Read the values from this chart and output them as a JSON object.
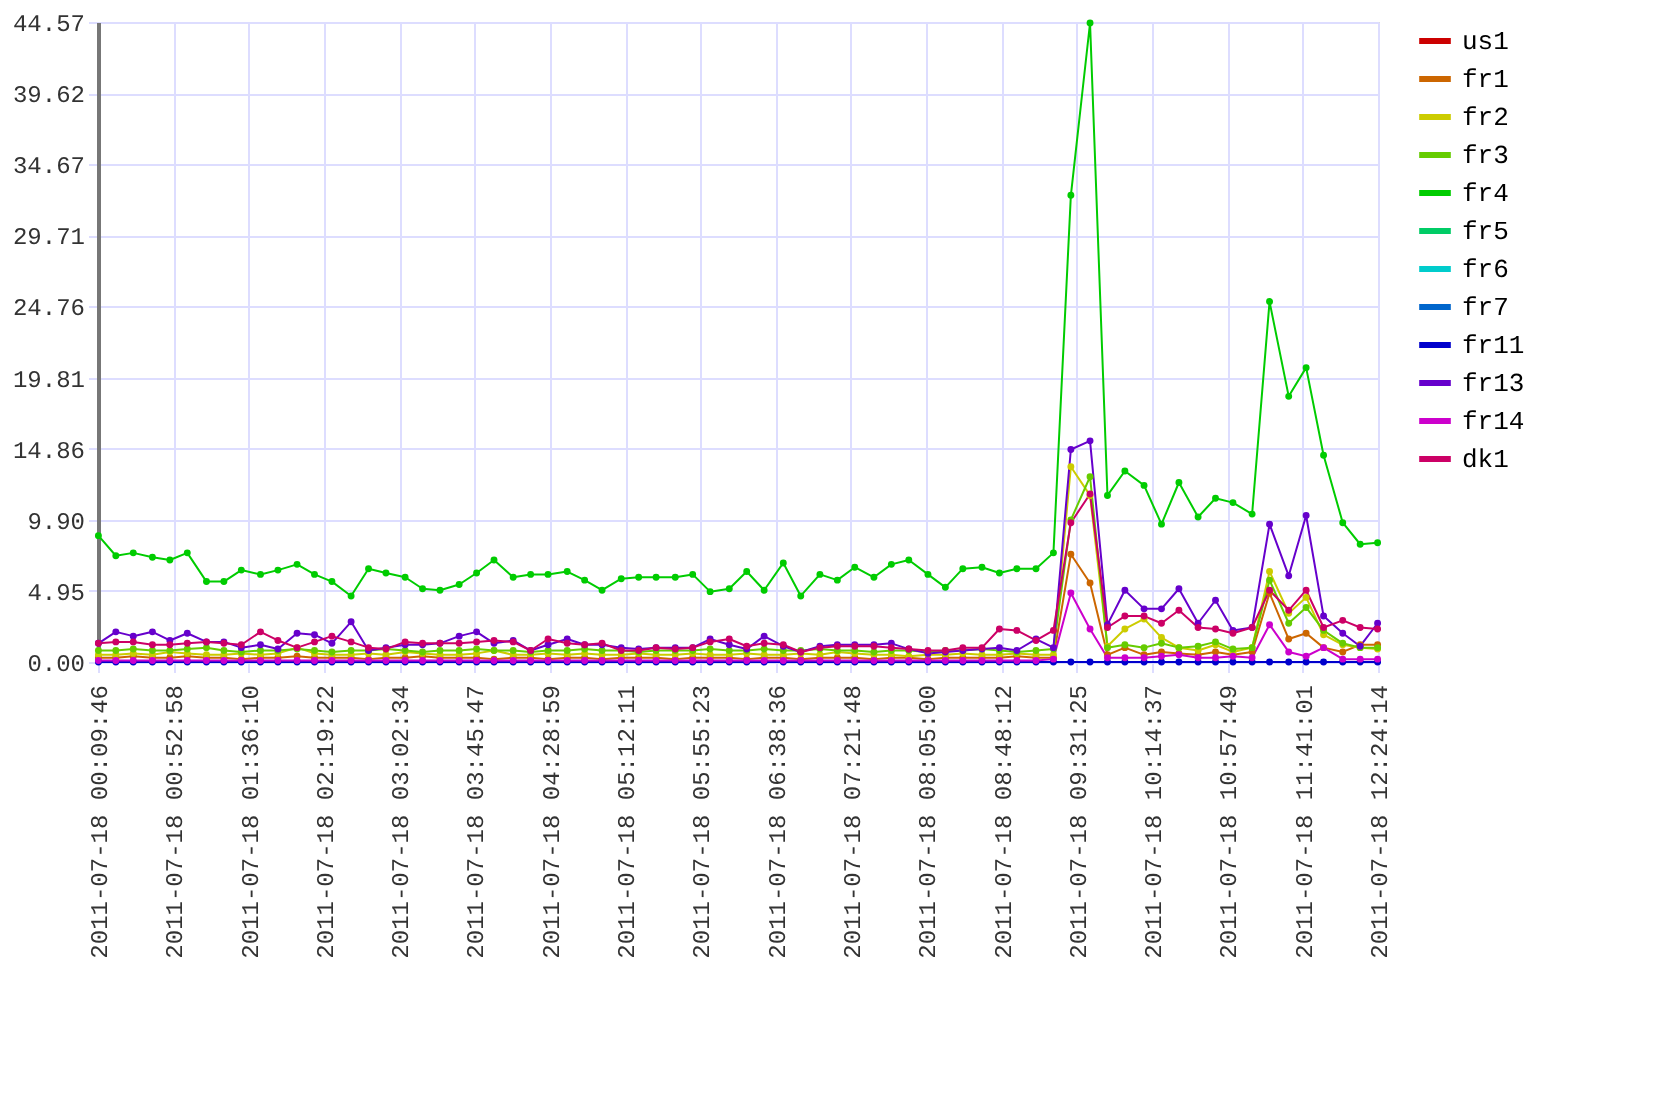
{
  "chart_data": {
    "type": "line",
    "x": [
      "2011-07-18T00:10",
      "2011-07-18T00:20",
      "2011-07-18T00:30",
      "2011-07-18T00:41",
      "2011-07-18T00:51",
      "2011-07-18T01:01",
      "2011-07-18T01:12",
      "2011-07-18T01:22",
      "2011-07-18T01:32",
      "2011-07-18T01:43",
      "2011-07-18T01:53",
      "2011-07-18T02:04",
      "2011-07-18T02:14",
      "2011-07-18T02:24",
      "2011-07-18T02:35",
      "2011-07-18T02:45",
      "2011-07-18T02:55",
      "2011-07-18T03:06",
      "2011-07-18T03:16",
      "2011-07-18T03:26",
      "2011-07-18T03:37",
      "2011-07-18T03:47",
      "2011-07-18T03:57",
      "2011-07-18T04:08",
      "2011-07-18T04:18",
      "2011-07-18T04:28",
      "2011-07-18T04:39",
      "2011-07-18T04:49",
      "2011-07-18T04:59",
      "2011-07-18T05:10",
      "2011-07-18T05:20",
      "2011-07-18T05:30",
      "2011-07-18T05:41",
      "2011-07-18T05:51",
      "2011-07-18T06:01",
      "2011-07-18T06:12",
      "2011-07-18T06:22",
      "2011-07-18T06:32",
      "2011-07-18T06:43",
      "2011-07-18T06:53",
      "2011-07-18T07:04",
      "2011-07-18T07:14",
      "2011-07-18T07:24",
      "2011-07-18T07:35",
      "2011-07-18T07:45",
      "2011-07-18T07:55",
      "2011-07-18T08:06",
      "2011-07-18T08:16",
      "2011-07-18T08:26",
      "2011-07-18T08:37",
      "2011-07-18T08:47",
      "2011-07-18T08:57",
      "2011-07-18T09:08",
      "2011-07-18T09:18",
      "2011-07-18T09:28",
      "2011-07-18T09:39",
      "2011-07-18T09:49",
      "2011-07-18T09:59",
      "2011-07-18T10:10",
      "2011-07-18T10:20",
      "2011-07-18T10:30",
      "2011-07-18T10:41",
      "2011-07-18T10:51",
      "2011-07-18T11:01",
      "2011-07-18T11:12",
      "2011-07-18T11:22",
      "2011-07-18T11:33",
      "2011-07-18T11:43",
      "2011-07-18T11:53",
      "2011-07-18T12:04",
      "2011-07-18T12:14",
      "2011-07-18T12:24"
    ],
    "series": [
      {
        "name": "us1",
        "color": "#cc0000",
        "values": [
          null,
          null,
          null,
          null,
          null,
          null,
          null,
          null,
          null,
          null,
          null,
          null,
          null,
          null,
          null,
          null,
          null,
          null,
          null,
          null,
          null,
          null,
          null,
          null,
          null,
          null,
          null,
          null,
          null,
          null,
          null,
          null,
          null,
          null,
          null,
          null,
          null,
          null,
          null,
          null,
          null,
          null,
          null,
          null,
          null,
          null,
          null,
          null,
          null,
          null,
          null,
          null,
          null,
          null,
          null,
          null,
          null,
          null,
          null,
          null,
          null,
          null,
          null,
          null,
          null,
          null,
          null,
          null,
          null,
          null,
          null,
          null
        ]
      },
      {
        "name": "fr1",
        "color": "#cc6600",
        "values": [
          0.3,
          0.3,
          0.4,
          0.3,
          0.3,
          0.4,
          0.3,
          0.3,
          0.2,
          0.3,
          0.3,
          0.4,
          0.3,
          0.3,
          0.3,
          0.2,
          0.3,
          0.3,
          0.4,
          0.3,
          0.3,
          0.3,
          0.2,
          0.3,
          0.3,
          0.2,
          0.3,
          0.3,
          0.2,
          0.3,
          0.3,
          0.3,
          0.2,
          0.3,
          0.3,
          0.3,
          0.2,
          0.3,
          0.3,
          0.2,
          0.3,
          0.3,
          0.3,
          0.2,
          0.3,
          0.3,
          0.2,
          0.3,
          0.3,
          0.3,
          0.3,
          0.4,
          0.3,
          0.3,
          7.5,
          5.5,
          0.5,
          1.0,
          0.5,
          0.7,
          0.6,
          0.5,
          0.7,
          0.5,
          0.7,
          4.8,
          1.6,
          2.0,
          1.0,
          0.7,
          1.2,
          1.2
        ]
      },
      {
        "name": "fr2",
        "color": "#cccc00",
        "values": [
          0.5,
          0.5,
          0.6,
          0.5,
          0.7,
          0.6,
          0.5,
          0.5,
          0.6,
          0.5,
          0.6,
          1.0,
          0.6,
          0.5,
          0.5,
          0.6,
          0.5,
          0.7,
          0.6,
          0.5,
          0.5,
          0.6,
          0.8,
          0.5,
          0.5,
          0.6,
          0.5,
          0.6,
          0.5,
          0.5,
          0.6,
          0.5,
          0.5,
          0.6,
          0.5,
          0.5,
          0.6,
          0.5,
          0.5,
          0.6,
          0.5,
          0.7,
          0.6,
          0.5,
          0.5,
          0.4,
          0.5,
          0.5,
          0.6,
          0.5,
          0.5,
          0.6,
          0.5,
          0.5,
          13.6,
          11.6,
          1.1,
          2.3,
          3.0,
          1.7,
          1.0,
          0.8,
          1.2,
          0.7,
          1.0,
          6.3,
          3.4,
          4.5,
          1.9,
          1.2,
          1.0,
          0.9
        ]
      },
      {
        "name": "fr3",
        "color": "#66cc00",
        "values": [
          0.8,
          0.8,
          0.9,
          0.8,
          0.8,
          0.9,
          1.0,
          0.8,
          0.7,
          0.8,
          0.8,
          0.9,
          0.8,
          0.7,
          0.8,
          0.8,
          0.9,
          0.8,
          0.7,
          0.8,
          0.8,
          0.9,
          0.8,
          0.8,
          0.7,
          0.8,
          0.8,
          0.9,
          0.8,
          0.8,
          0.7,
          0.8,
          0.8,
          0.8,
          0.9,
          0.8,
          0.8,
          0.9,
          0.8,
          0.8,
          0.9,
          0.8,
          0.8,
          0.7,
          0.8,
          0.8,
          0.7,
          0.8,
          0.8,
          0.9,
          0.8,
          0.7,
          0.8,
          0.9,
          9.9,
          12.9,
          1.0,
          1.2,
          1.0,
          1.3,
          1.0,
          1.1,
          1.4,
          0.9,
          1.0,
          5.7,
          2.7,
          3.8,
          2.2,
          1.3,
          1.0,
          1.0
        ]
      },
      {
        "name": "fr4",
        "color": "#00cc00",
        "values": [
          8.8,
          7.4,
          7.6,
          7.3,
          7.1,
          7.6,
          5.6,
          5.6,
          6.4,
          6.1,
          6.4,
          6.8,
          6.1,
          5.6,
          4.6,
          6.5,
          6.2,
          5.9,
          5.1,
          5.0,
          5.4,
          6.2,
          7.1,
          5.9,
          6.1,
          6.1,
          6.3,
          5.7,
          5.0,
          5.8,
          5.9,
          5.9,
          5.9,
          6.1,
          4.9,
          5.1,
          6.3,
          5.0,
          6.9,
          4.6,
          6.1,
          5.7,
          6.6,
          5.9,
          6.8,
          7.1,
          6.1,
          5.2,
          6.5,
          6.6,
          6.2,
          6.5,
          6.5,
          7.6,
          32.5,
          44.5,
          11.6,
          13.3,
          12.3,
          9.6,
          12.5,
          10.1,
          11.4,
          11.1,
          10.3,
          25.1,
          18.5,
          20.5,
          14.4,
          9.7,
          8.2,
          8.3
        ]
      },
      {
        "name": "fr5",
        "color": "#00cc66",
        "values": [
          null,
          null,
          null,
          null,
          null,
          null,
          null,
          null,
          null,
          null,
          null,
          null,
          null,
          null,
          null,
          null,
          null,
          null,
          null,
          null,
          null,
          null,
          null,
          null,
          null,
          null,
          null,
          null,
          null,
          null,
          null,
          null,
          null,
          null,
          null,
          null,
          null,
          null,
          null,
          null,
          null,
          null,
          null,
          null,
          null,
          null,
          null,
          null,
          null,
          null,
          null,
          null,
          null,
          null,
          null,
          null,
          null,
          null,
          null,
          null,
          null,
          null,
          null,
          null,
          null,
          null,
          null,
          null,
          null,
          null,
          null,
          null
        ]
      },
      {
        "name": "fr6",
        "color": "#00cccc",
        "values": [
          null,
          null,
          null,
          null,
          null,
          null,
          null,
          null,
          null,
          null,
          null,
          null,
          null,
          null,
          null,
          null,
          null,
          null,
          null,
          null,
          null,
          null,
          null,
          null,
          null,
          null,
          null,
          null,
          null,
          null,
          null,
          null,
          null,
          null,
          null,
          null,
          null,
          null,
          null,
          null,
          null,
          null,
          null,
          null,
          null,
          null,
          null,
          null,
          null,
          null,
          null,
          null,
          null,
          null,
          null,
          null,
          null,
          null,
          null,
          null,
          null,
          null,
          null,
          null,
          null,
          null,
          null,
          null,
          null,
          null,
          null,
          null
        ]
      },
      {
        "name": "fr7",
        "color": "#0066cc",
        "values": [
          null,
          null,
          null,
          null,
          null,
          null,
          null,
          null,
          null,
          null,
          null,
          null,
          null,
          null,
          null,
          null,
          null,
          null,
          null,
          null,
          null,
          null,
          null,
          null,
          null,
          null,
          null,
          null,
          null,
          null,
          null,
          null,
          null,
          null,
          null,
          null,
          null,
          null,
          null,
          null,
          null,
          null,
          null,
          null,
          null,
          null,
          null,
          null,
          null,
          null,
          null,
          null,
          null,
          null,
          null,
          null,
          null,
          null,
          null,
          null,
          null,
          null,
          null,
          null,
          null,
          null,
          null,
          null,
          null,
          null,
          null,
          null
        ]
      },
      {
        "name": "fr11",
        "color": "#0000cc",
        "values": [
          0,
          0,
          0,
          0,
          0,
          0,
          0,
          0,
          0,
          0,
          0,
          0,
          0,
          0,
          0,
          0,
          0,
          0,
          0,
          0,
          0,
          0,
          0,
          0,
          0,
          0,
          0,
          0,
          0,
          0,
          0,
          0,
          0,
          0,
          0,
          0,
          0,
          0,
          0,
          0,
          0,
          0,
          0,
          0,
          0,
          0,
          0,
          0,
          0,
          0,
          0,
          0,
          0,
          0,
          0,
          0,
          0,
          0,
          0,
          0,
          0,
          0,
          0,
          0,
          0,
          0,
          0,
          0,
          0,
          0,
          0,
          0
        ]
      },
      {
        "name": "fr13",
        "color": "#6600cc",
        "values": [
          1.3,
          2.1,
          1.8,
          2.1,
          1.5,
          2.0,
          1.4,
          1.4,
          1.0,
          1.2,
          0.9,
          2.0,
          1.9,
          1.3,
          2.8,
          0.8,
          1.0,
          1.2,
          1.2,
          1.3,
          1.8,
          2.1,
          1.3,
          1.5,
          0.8,
          1.2,
          1.6,
          1.2,
          1.2,
          1.0,
          0.9,
          1.0,
          1.0,
          1.0,
          1.6,
          1.2,
          0.9,
          1.8,
          1.1,
          0.7,
          1.1,
          1.2,
          1.2,
          1.2,
          1.3,
          0.9,
          0.6,
          0.7,
          0.8,
          0.9,
          1.0,
          0.8,
          1.6,
          1.0,
          14.8,
          15.4,
          2.6,
          5.0,
          3.7,
          3.7,
          5.1,
          2.7,
          4.3,
          2.2,
          2.4,
          9.6,
          6.0,
          10.2,
          3.2,
          2.0,
          1.1,
          2.7
        ]
      },
      {
        "name": "fr14",
        "color": "#cc00cc",
        "values": [
          0.1,
          0.1,
          0.1,
          0.1,
          0.1,
          0.1,
          0.1,
          0.1,
          0.1,
          0.1,
          0.1,
          0.1,
          0.1,
          0.1,
          0.1,
          0.1,
          0.1,
          0.1,
          0.1,
          0.1,
          0.1,
          0.1,
          0.1,
          0.1,
          0.1,
          0.1,
          0.1,
          0.1,
          0.1,
          0.1,
          0.1,
          0.1,
          0.1,
          0.1,
          0.1,
          0.1,
          0.1,
          0.1,
          0.1,
          0.1,
          0.1,
          0.1,
          0.1,
          0.1,
          0.1,
          0.1,
          0.1,
          0.1,
          0.1,
          0.1,
          0.1,
          0.1,
          0.1,
          0.2,
          4.8,
          2.3,
          0.3,
          0.3,
          0.3,
          0.4,
          0.5,
          0.3,
          0.3,
          0.4,
          0.3,
          2.6,
          0.7,
          0.4,
          1.0,
          0.2,
          0.2,
          0.2
        ]
      },
      {
        "name": "dk1",
        "color": "#cc0066",
        "values": [
          1.3,
          1.4,
          1.4,
          1.2,
          1.2,
          1.3,
          1.4,
          1.3,
          1.2,
          2.1,
          1.5,
          1.0,
          1.4,
          1.8,
          1.4,
          1.0,
          0.9,
          1.4,
          1.3,
          1.3,
          1.3,
          1.4,
          1.5,
          1.4,
          0.8,
          1.6,
          1.3,
          1.2,
          1.3,
          0.8,
          0.8,
          1.0,
          0.9,
          1.0,
          1.4,
          1.6,
          1.1,
          1.3,
          1.2,
          0.7,
          1.0,
          1.1,
          1.1,
          1.1,
          1.0,
          0.9,
          0.8,
          0.8,
          1.0,
          1.0,
          2.3,
          2.2,
          1.5,
          2.2,
          9.7,
          11.7,
          2.4,
          3.2,
          3.2,
          2.7,
          3.6,
          2.4,
          2.3,
          2.0,
          2.4,
          5.0,
          3.6,
          5.0,
          2.4,
          2.9,
          2.4,
          2.3
        ]
      }
    ],
    "xlim": [
      "2011-07-18T00:09:46",
      "2011-07-18T12:24:14"
    ],
    "xticks": [
      {
        "value": "2011-07-18T00:09:46",
        "label": "2011-07-18 00:09:46"
      },
      {
        "value": "2011-07-18T00:52:58",
        "label": "2011-07-18 00:52:58"
      },
      {
        "value": "2011-07-18T01:36:10",
        "label": "2011-07-18 01:36:10"
      },
      {
        "value": "2011-07-18T02:19:22",
        "label": "2011-07-18 02:19:22"
      },
      {
        "value": "2011-07-18T03:02:34",
        "label": "2011-07-18 03:02:34"
      },
      {
        "value": "2011-07-18T03:45:47",
        "label": "2011-07-18 03:45:47"
      },
      {
        "value": "2011-07-18T04:28:59",
        "label": "2011-07-18 04:28:59"
      },
      {
        "value": "2011-07-18T05:12:11",
        "label": "2011-07-18 05:12:11"
      },
      {
        "value": "2011-07-18T05:55:23",
        "label": "2011-07-18 05:55:23"
      },
      {
        "value": "2011-07-18T06:38:36",
        "label": "2011-07-18 06:38:36"
      },
      {
        "value": "2011-07-18T07:21:48",
        "label": "2011-07-18 07:21:48"
      },
      {
        "value": "2011-07-18T08:05:00",
        "label": "2011-07-18 08:05:00"
      },
      {
        "value": "2011-07-18T08:48:12",
        "label": "2011-07-18 08:48:12"
      },
      {
        "value": "2011-07-18T09:31:25",
        "label": "2011-07-18 09:31:25"
      },
      {
        "value": "2011-07-18T10:14:37",
        "label": "2011-07-18 10:14:37"
      },
      {
        "value": "2011-07-18T10:57:49",
        "label": "2011-07-18 10:57:49"
      },
      {
        "value": "2011-07-18T11:41:01",
        "label": "2011-07-18 11:41:01"
      },
      {
        "value": "2011-07-18T12:24:14",
        "label": "2011-07-18 12:24:14"
      }
    ],
    "ylim": [
      0,
      44.57
    ],
    "yticks": [
      {
        "value": 0,
        "label": "0.00"
      },
      {
        "value": 4.95,
        "label": "4.95"
      },
      {
        "value": 9.9,
        "label": "9.90"
      },
      {
        "value": 14.86,
        "label": "14.86"
      },
      {
        "value": 19.81,
        "label": "19.81"
      },
      {
        "value": 24.76,
        "label": "24.76"
      },
      {
        "value": 29.71,
        "label": "29.71"
      },
      {
        "value": 34.67,
        "label": "34.67"
      },
      {
        "value": 39.62,
        "label": "39.62"
      },
      {
        "value": 44.57,
        "label": "44.57"
      }
    ],
    "grid": true,
    "legend": "top right",
    "marker": "circle",
    "line_style": "solid"
  }
}
